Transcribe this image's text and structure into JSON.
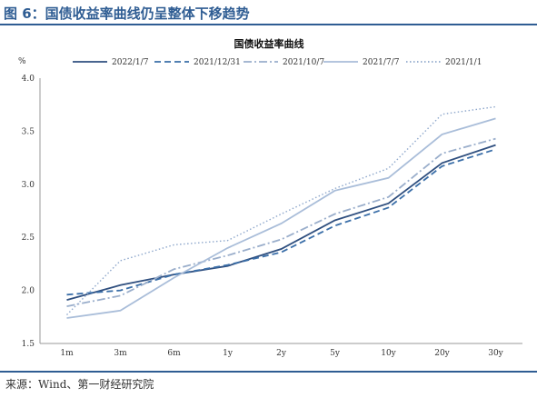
{
  "figure": {
    "title": "图 6：国债收益率曲线仍呈整体下移趋势",
    "source": "来源：Wind、第一财经研究院"
  },
  "chart_data": {
    "type": "line",
    "title": "国债收益率曲线",
    "ylabel": "%",
    "xlabel": "",
    "ylim": [
      1.5,
      4.0
    ],
    "yticks": [
      "1.5",
      "2.0",
      "2.5",
      "3.0",
      "3.5",
      "4.0"
    ],
    "categories": [
      "1m",
      "3m",
      "6m",
      "1y",
      "2y",
      "5y",
      "10y",
      "20y",
      "30y"
    ],
    "legend_position": "top",
    "grid": false,
    "series": [
      {
        "name": "2022/1/7",
        "color": "#2f4f7f",
        "dash": "solid",
        "values": [
          1.91,
          2.05,
          2.15,
          2.23,
          2.39,
          2.66,
          2.82,
          3.2,
          3.37
        ]
      },
      {
        "name": "2021/12/31",
        "color": "#3a6ea8",
        "dash": "dashed",
        "values": [
          1.96,
          2.0,
          2.15,
          2.24,
          2.36,
          2.61,
          2.78,
          3.17,
          3.33
        ]
      },
      {
        "name": "2021/10/7",
        "color": "#9aaecb",
        "dash": "dashdot",
        "values": [
          1.85,
          1.95,
          2.2,
          2.33,
          2.48,
          2.72,
          2.88,
          3.29,
          3.43
        ]
      },
      {
        "name": "2021/7/7",
        "color": "#a9bdd9",
        "dash": "solid",
        "values": [
          1.74,
          1.81,
          2.12,
          2.4,
          2.63,
          2.94,
          3.06,
          3.47,
          3.62
        ]
      },
      {
        "name": "2021/1/1",
        "color": "#8fa8cc",
        "dash": "dotted",
        "values": [
          1.77,
          2.28,
          2.43,
          2.47,
          2.72,
          2.96,
          3.15,
          3.66,
          3.73
        ]
      }
    ]
  }
}
